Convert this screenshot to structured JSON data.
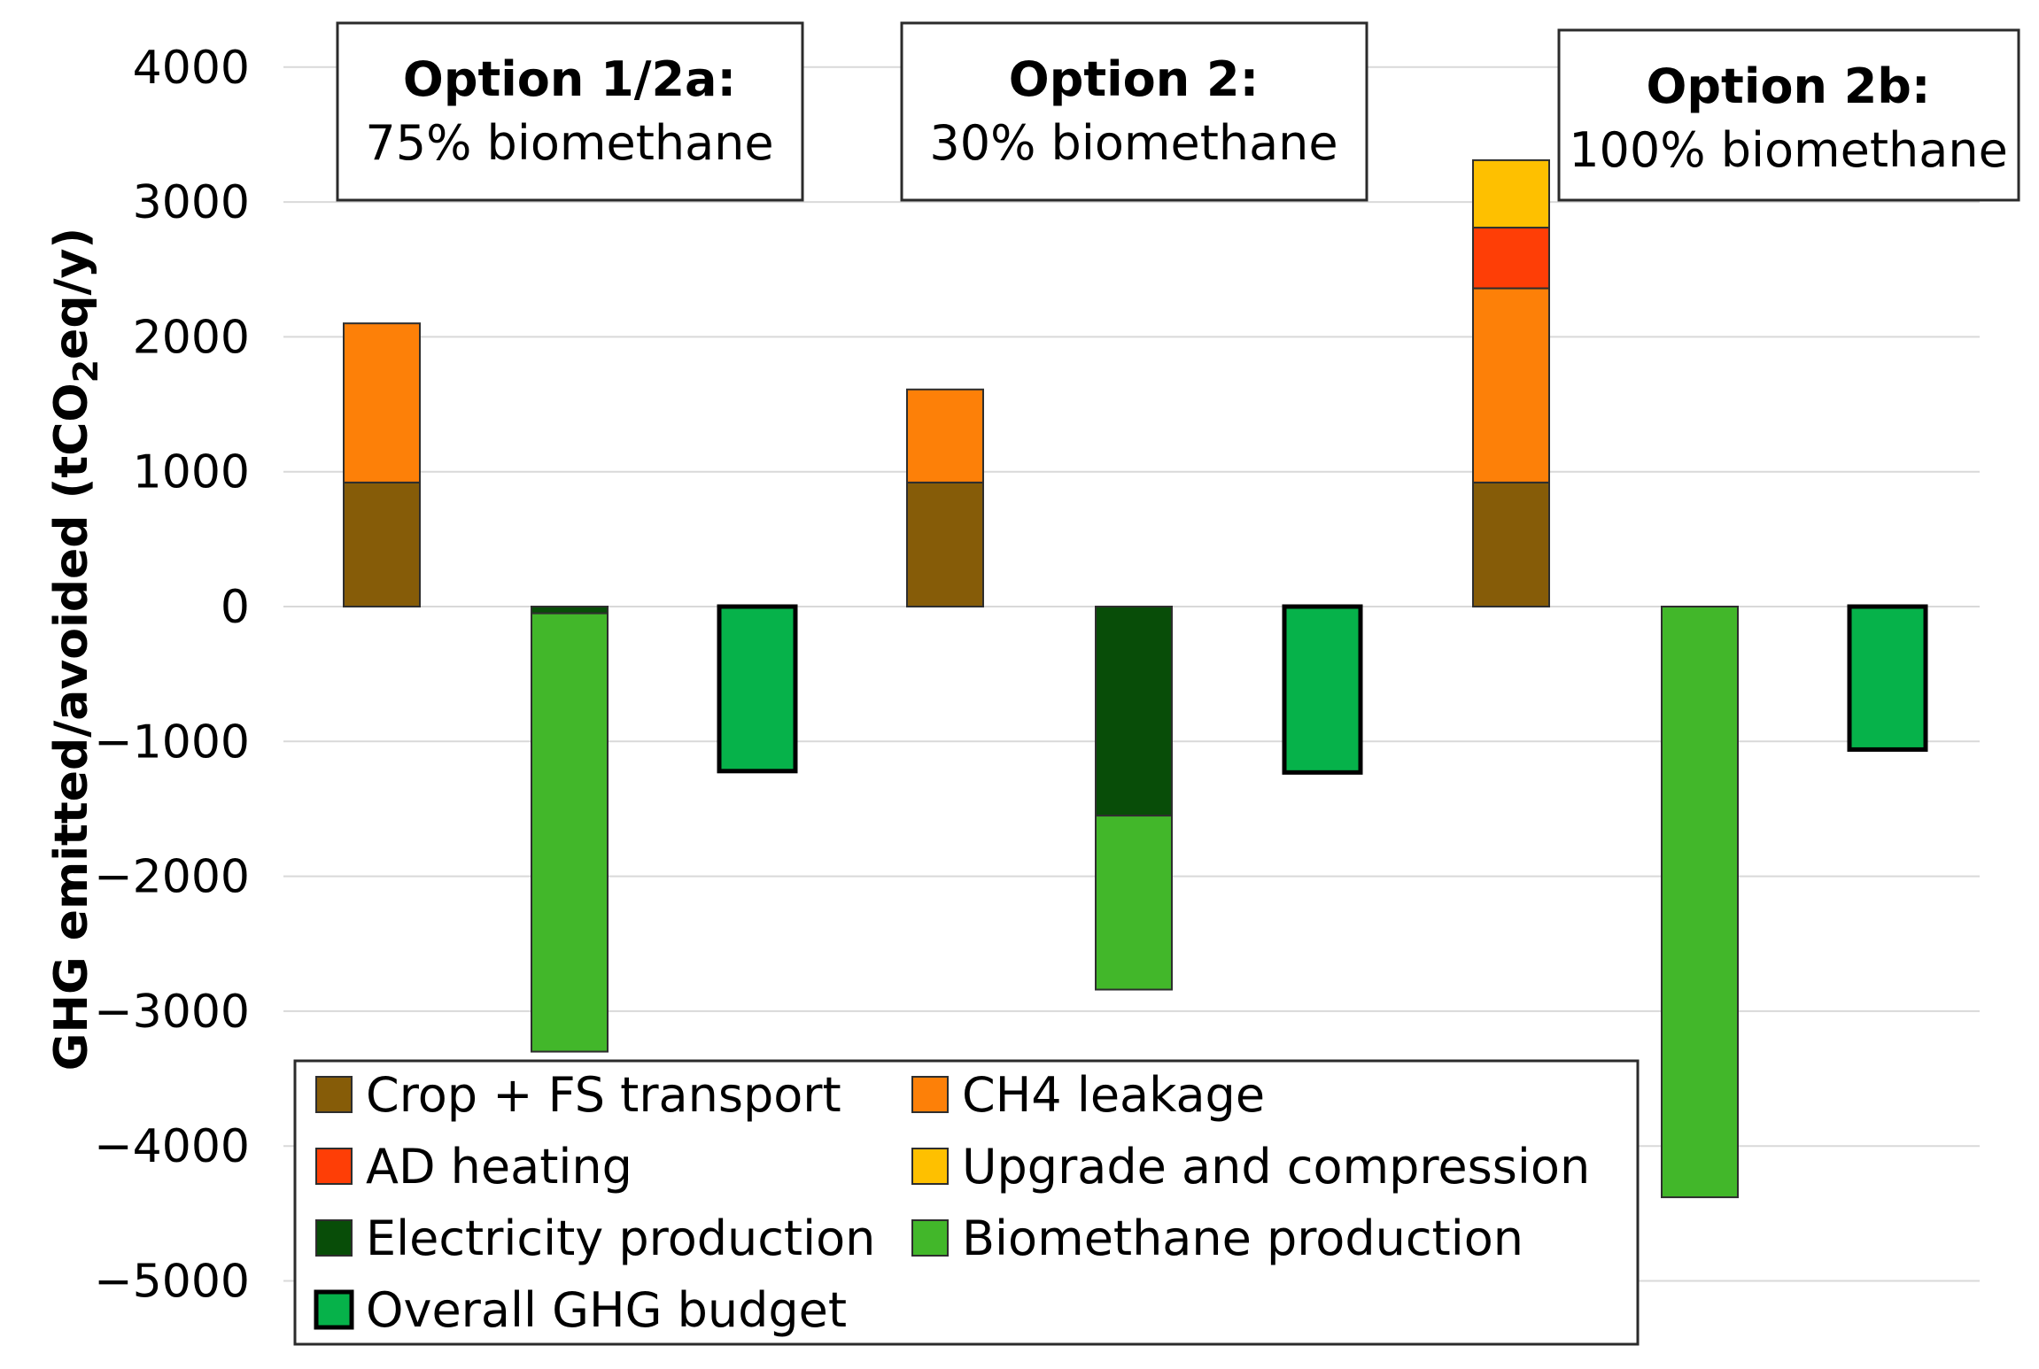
{
  "chart_data": {
    "type": "bar",
    "stacked": true,
    "ylabel_main": "GHG emitted/avoided (tCO",
    "ylabel_sub": "2",
    "ylabel_tail": "eq/y)",
    "ylim": [
      -5000,
      4000
    ],
    "yticks": [
      4000,
      3000,
      2000,
      1000,
      0,
      -1000,
      -2000,
      -3000,
      -4000,
      -5000
    ],
    "ytick_labels": [
      "4000",
      "3000",
      "2000",
      "1000",
      "0",
      "−1000",
      "−2000",
      "−3000",
      "−4000",
      "−5000"
    ],
    "grid": true,
    "legend_position": "bottom-left",
    "colors": {
      "crop": "#865c08",
      "ch4": "#fd8008",
      "ad": "#fe3e06",
      "upgrade": "#fec000",
      "elec": "#084d08",
      "bio": "#42b72a",
      "overall": "#06b24a"
    },
    "options": [
      {
        "title": "Option 1/2a:",
        "subtitle": "75% biomethane",
        "bars": [
          {
            "segments": [
              {
                "series": "crop",
                "value": 920
              },
              {
                "series": "ch4",
                "value": 1180
              }
            ]
          },
          {
            "segments": [
              {
                "series": "elec",
                "value": -50
              },
              {
                "series": "bio",
                "value": -3250
              }
            ]
          },
          {
            "segments": [
              {
                "series": "overall",
                "value": -1220
              }
            ]
          }
        ]
      },
      {
        "title": "Option 2:",
        "subtitle": "30% biomethane",
        "bars": [
          {
            "segments": [
              {
                "series": "crop",
                "value": 920
              },
              {
                "series": "ch4",
                "value": 690
              }
            ]
          },
          {
            "segments": [
              {
                "series": "elec",
                "value": -1550
              },
              {
                "series": "bio",
                "value": -1290
              }
            ]
          },
          {
            "segments": [
              {
                "series": "overall",
                "value": -1230
              }
            ]
          }
        ]
      },
      {
        "title": "Option 2b:",
        "subtitle": "100% biomethane",
        "bars": [
          {
            "segments": [
              {
                "series": "crop",
                "value": 920
              },
              {
                "series": "ch4",
                "value": 1440
              },
              {
                "series": "ad",
                "value": 450
              },
              {
                "series": "upgrade",
                "value": 500
              }
            ]
          },
          {
            "segments": [
              {
                "series": "bio",
                "value": -4380
              }
            ]
          },
          {
            "segments": [
              {
                "series": "overall",
                "value": -1060
              }
            ]
          }
        ]
      }
    ],
    "legend": [
      {
        "key": "crop",
        "label": "Crop + FS transport"
      },
      {
        "key": "ch4",
        "label": "CH4 leakage"
      },
      {
        "key": "ad",
        "label": "AD heating"
      },
      {
        "key": "upgrade",
        "label": "Upgrade and compression"
      },
      {
        "key": "elec",
        "label": "Electricity production"
      },
      {
        "key": "bio",
        "label": "Biomethane production"
      },
      {
        "key": "overall",
        "label": "Overall GHG budget"
      }
    ]
  }
}
